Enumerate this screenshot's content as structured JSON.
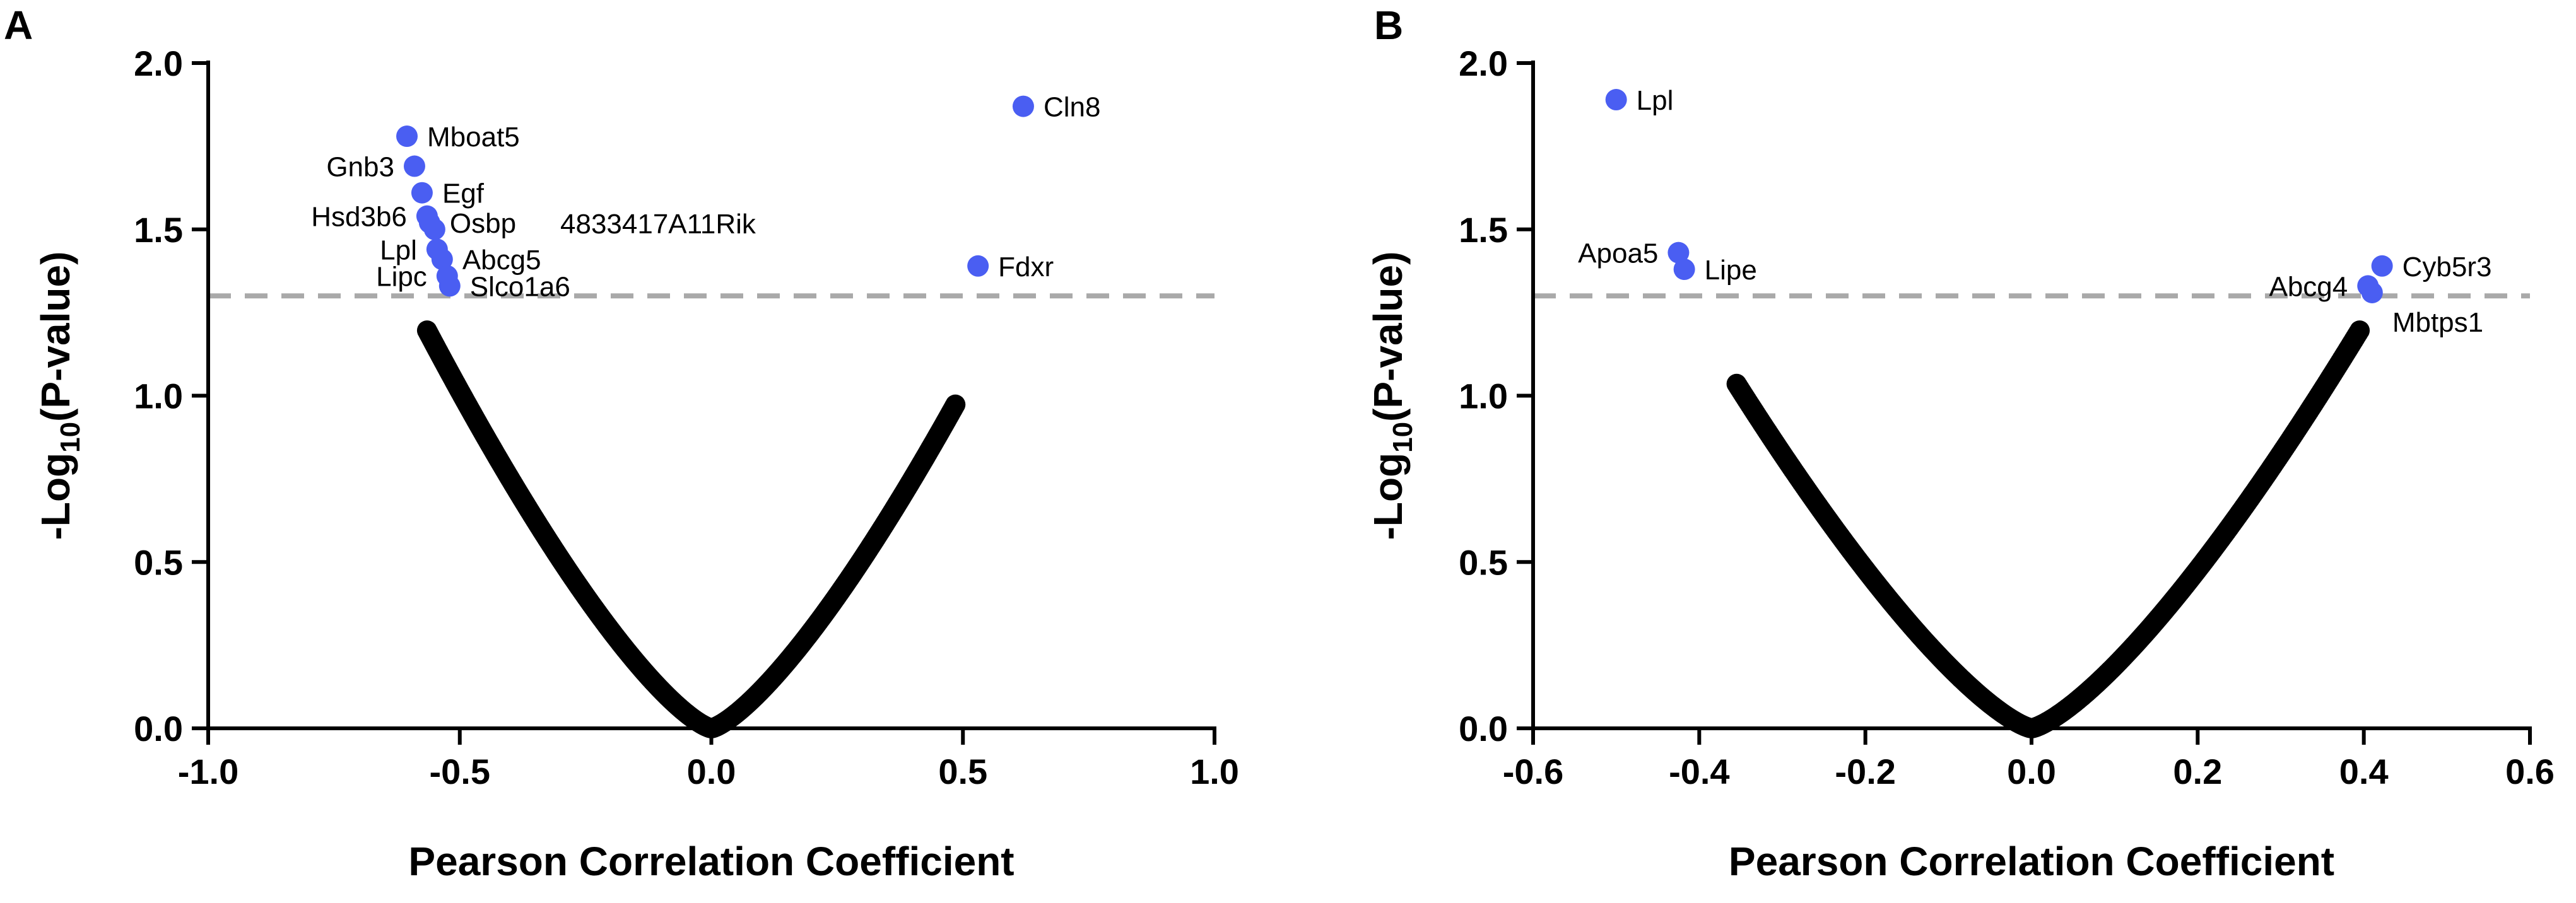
{
  "chart_data": [
    {
      "panel_label": "A",
      "type": "scatter",
      "subtype": "volcano",
      "xlabel": "Pearson Correlation Coefficient",
      "ylabel_parts": [
        "-Log",
        "10",
        "(P-value)"
      ],
      "xlim": [
        -1.0,
        1.0
      ],
      "ylim": [
        0.0,
        2.0
      ],
      "xticks": [
        -1.0,
        -0.5,
        0.0,
        0.5,
        1.0
      ],
      "xtick_labels": [
        "-1.0",
        "-0.5",
        "0.0",
        "0.5",
        "1.0"
      ],
      "yticks": [
        0.0,
        0.5,
        1.0,
        1.5,
        2.0
      ],
      "ytick_labels": [
        "0.0",
        "0.5",
        "1.0",
        "1.5",
        "2.0"
      ],
      "threshold": 1.3,
      "nonsignificant_color": "#000000",
      "significant_color": "#4a5ef2",
      "threshold_color": "#a9a9a9",
      "background_curve": {
        "r_min": -0.565,
        "r_max": 0.485,
        "n_samples": 12
      },
      "significant_points": [
        {
          "name": "Cln8",
          "r": 0.62,
          "p_log": 1.87,
          "label_side": "right"
        },
        {
          "name": "Fdxr",
          "r": 0.53,
          "p_log": 1.39,
          "label_side": "right"
        },
        {
          "name": "Mboat5",
          "r": -0.605,
          "p_log": 1.78,
          "label_side": "right"
        },
        {
          "name": "Gnb3",
          "r": -0.59,
          "p_log": 1.69,
          "label_side": "left"
        },
        {
          "name": "Egf",
          "r": -0.575,
          "p_log": 1.61,
          "label_side": "right"
        },
        {
          "name": "Hsd3b6",
          "r": -0.565,
          "p_log": 1.54,
          "label_side": "left"
        },
        {
          "name": "Osbp",
          "r": -0.56,
          "p_log": 1.52,
          "label_side": "right"
        },
        {
          "name": "4833417A11Rik",
          "r": -0.55,
          "p_log": 1.5,
          "label_side": "none"
        },
        {
          "name": "Lpl",
          "r": -0.545,
          "p_log": 1.44,
          "label_side": "left"
        },
        {
          "name": "Abcg5",
          "r": -0.535,
          "p_log": 1.41,
          "label_side": "right"
        },
        {
          "name": "Lipc",
          "r": -0.525,
          "p_log": 1.36,
          "label_side": "left"
        },
        {
          "name": "Slco1a6",
          "r": -0.52,
          "p_log": 1.33,
          "label_side": "right"
        }
      ],
      "free_labels": [
        "4833417A11Rik"
      ]
    },
    {
      "panel_label": "B",
      "type": "scatter",
      "subtype": "volcano",
      "xlabel": "Pearson Correlation Coefficient",
      "ylabel_parts": [
        "-Log",
        "10",
        "(P-value)"
      ],
      "xlim": [
        -0.6,
        0.6
      ],
      "ylim": [
        0.0,
        2.0
      ],
      "xticks": [
        -0.6,
        -0.4,
        -0.2,
        0.0,
        0.2,
        0.4,
        0.6
      ],
      "xtick_labels": [
        "-0.6",
        "-0.4",
        "-0.2",
        "0.0",
        "0.2",
        "0.4",
        "0.6"
      ],
      "yticks": [
        0.0,
        0.5,
        1.0,
        1.5,
        2.0
      ],
      "ytick_labels": [
        "0.0",
        "0.5",
        "1.0",
        "1.5",
        "2.0"
      ],
      "threshold": 1.3,
      "nonsignificant_color": "#000000",
      "significant_color": "#4a5ef2",
      "threshold_color": "#a9a9a9",
      "background_curve": {
        "r_min": -0.355,
        "r_max": 0.395,
        "n_samples": 12
      },
      "significant_points": [
        {
          "name": "Lpl",
          "r": -0.5,
          "p_log": 1.89,
          "label_side": "right"
        },
        {
          "name": "Apoa5",
          "r": -0.425,
          "p_log": 1.43,
          "label_side": "left"
        },
        {
          "name": "Lipe",
          "r": -0.418,
          "p_log": 1.38,
          "label_side": "right"
        },
        {
          "name": "Cyb5r3",
          "r": 0.422,
          "p_log": 1.39,
          "label_side": "right"
        },
        {
          "name": "Abcg4",
          "r": 0.405,
          "p_log": 1.33,
          "label_side": "left"
        },
        {
          "name": "Mbtps1",
          "r": 0.41,
          "p_log": 1.31,
          "label_side": "right-below"
        }
      ],
      "free_labels": []
    }
  ]
}
